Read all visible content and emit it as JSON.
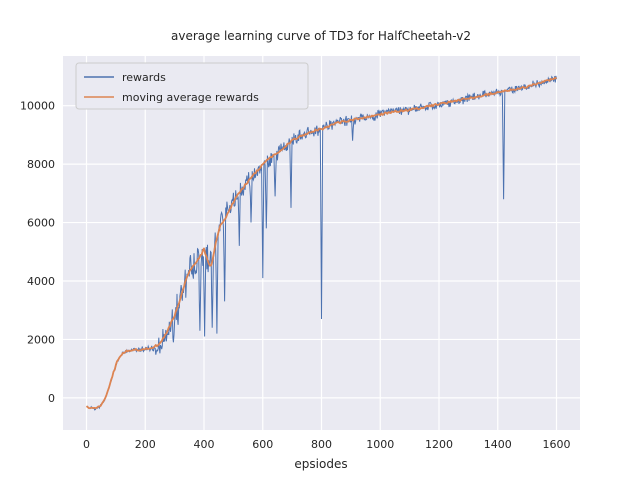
{
  "figure": {
    "bg": "#ffffff",
    "axes_bg": "#eaeaf2",
    "grid_color": "#ffffff",
    "text_color": "#262626"
  },
  "chart_data": {
    "type": "line",
    "title": "average learning curve of TD3 for HalfCheetah-v2",
    "xlabel": "epsiodes",
    "ylabel": "",
    "grid": true,
    "xlim": [
      -80,
      1680
    ],
    "ylim": [
      -1100,
      11700
    ],
    "xticks": [
      0,
      200,
      400,
      600,
      800,
      1000,
      1200,
      1400,
      1600
    ],
    "yticks": [
      0,
      2000,
      4000,
      6000,
      8000,
      10000
    ],
    "legend": {
      "position": "upper left",
      "entries": [
        {
          "label": "rewards",
          "color": "#4c72b0"
        },
        {
          "label": "moving average rewards",
          "color": "#dd8452"
        }
      ]
    },
    "series": [
      {
        "name": "rewards",
        "color": "#4c72b0",
        "style": "noisy"
      },
      {
        "name": "moving average rewards",
        "color": "#dd8452",
        "style": "smooth"
      }
    ],
    "moving_average_keypoints": [
      [
        0,
        -300
      ],
      [
        15,
        -350
      ],
      [
        30,
        -380
      ],
      [
        45,
        -300
      ],
      [
        60,
        -100
      ],
      [
        75,
        300
      ],
      [
        90,
        800
      ],
      [
        105,
        1250
      ],
      [
        120,
        1500
      ],
      [
        135,
        1600
      ],
      [
        150,
        1620
      ],
      [
        175,
        1650
      ],
      [
        200,
        1680
      ],
      [
        225,
        1720
      ],
      [
        250,
        1850
      ],
      [
        265,
        2100
      ],
      [
        280,
        2400
      ],
      [
        295,
        2700
      ],
      [
        310,
        3100
      ],
      [
        325,
        3600
      ],
      [
        340,
        4100
      ],
      [
        355,
        4400
      ],
      [
        370,
        4600
      ],
      [
        385,
        4800
      ],
      [
        400,
        5100
      ],
      [
        415,
        4600
      ],
      [
        425,
        4500
      ],
      [
        440,
        5300
      ],
      [
        455,
        5900
      ],
      [
        470,
        6100
      ],
      [
        485,
        6400
      ],
      [
        500,
        6700
      ],
      [
        525,
        7100
      ],
      [
        550,
        7400
      ],
      [
        575,
        7700
      ],
      [
        600,
        8000
      ],
      [
        625,
        8200
      ],
      [
        650,
        8400
      ],
      [
        675,
        8600
      ],
      [
        700,
        8800
      ],
      [
        725,
        8950
      ],
      [
        750,
        9050
      ],
      [
        775,
        9150
      ],
      [
        800,
        9200
      ],
      [
        825,
        9300
      ],
      [
        850,
        9400
      ],
      [
        875,
        9450
      ],
      [
        900,
        9500
      ],
      [
        950,
        9600
      ],
      [
        1000,
        9700
      ],
      [
        1050,
        9800
      ],
      [
        1100,
        9850
      ],
      [
        1150,
        9950
      ],
      [
        1200,
        10050
      ],
      [
        1250,
        10150
      ],
      [
        1300,
        10250
      ],
      [
        1350,
        10350
      ],
      [
        1400,
        10450
      ],
      [
        1450,
        10550
      ],
      [
        1500,
        10650
      ],
      [
        1550,
        10800
      ],
      [
        1600,
        10950
      ]
    ],
    "noise_amplitude_keypoints": [
      [
        0,
        50
      ],
      [
        140,
        60
      ],
      [
        200,
        120
      ],
      [
        250,
        450
      ],
      [
        300,
        600
      ],
      [
        360,
        650
      ],
      [
        420,
        700
      ],
      [
        500,
        450
      ],
      [
        600,
        350
      ],
      [
        700,
        280
      ],
      [
        800,
        230
      ],
      [
        900,
        200
      ],
      [
        1100,
        180
      ],
      [
        1600,
        170
      ]
    ],
    "reward_dips": [
      [
        295,
        1900
      ],
      [
        312,
        2500
      ],
      [
        385,
        2300
      ],
      [
        402,
        2100
      ],
      [
        428,
        2400
      ],
      [
        443,
        2200
      ],
      [
        470,
        3300
      ],
      [
        520,
        5200
      ],
      [
        560,
        6000
      ],
      [
        600,
        4100
      ],
      [
        612,
        5800
      ],
      [
        642,
        6900
      ],
      [
        695,
        6500
      ],
      [
        800,
        2700
      ],
      [
        905,
        8800
      ],
      [
        1420,
        6800
      ]
    ]
  }
}
